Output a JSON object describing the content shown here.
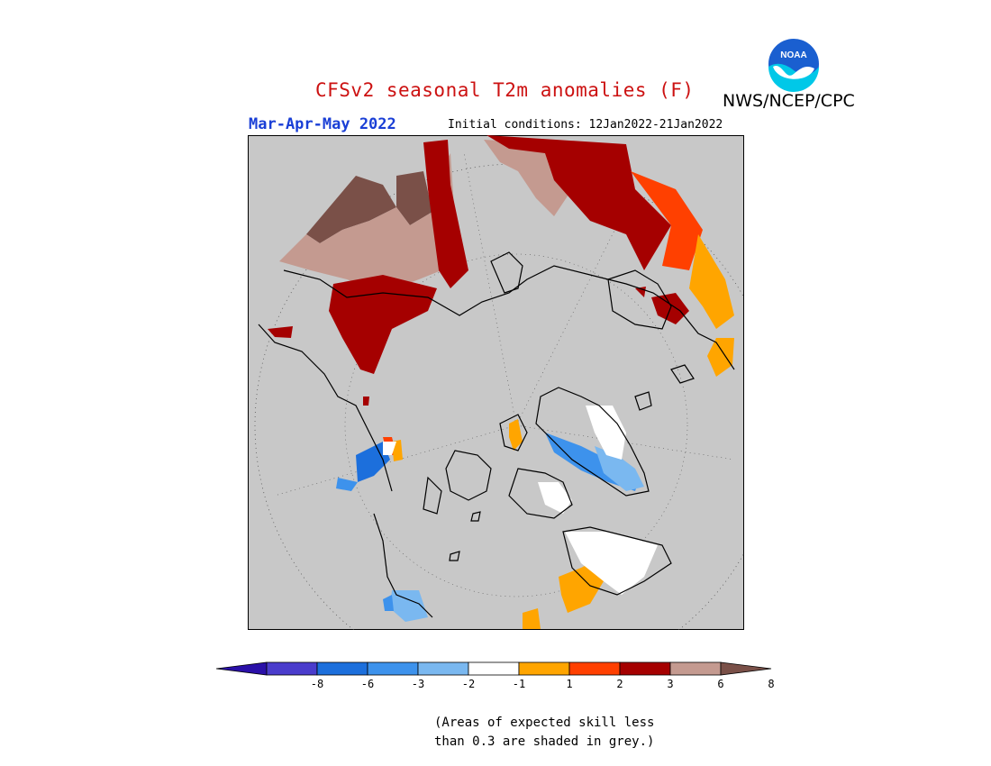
{
  "header": {
    "title": "CFSv2 seasonal T2m anomalies (F)",
    "agency": "NWS/NCEP/CPC",
    "logo_text": "NOAA",
    "season": "Mar-Apr-May 2022",
    "initial_conditions": "Initial conditions: 12Jan2022-21Jan2022"
  },
  "map": {
    "projection": "north polar stereographic",
    "background_color": "#c8c8c8",
    "legend_colors": {
      "lt_-8": "#1e0fa0",
      "-8_-6": "#4a3ccc",
      "-6_-3": "#1c6fdc",
      "-3_-2": "#3d92ec",
      "-2_-1": "#7ab8f0",
      "-1_1": "#ffffff",
      "1_2": "#ffa500",
      "2_3": "#ff4000",
      "3_6": "#a50000",
      "6_8": "#c49a90",
      "gt_8": "#7a5048"
    }
  },
  "colorbar": {
    "labels": [
      "-8",
      "-6",
      "-3",
      "-2",
      "-1",
      "1",
      "2",
      "3",
      "6",
      "8"
    ],
    "colors": [
      "#2a10a8",
      "#4a3ccc",
      "#1c6fdc",
      "#3d92ec",
      "#7ab8f0",
      "#ffffff",
      "#ffa500",
      "#ff4000",
      "#a50000",
      "#c49a90",
      "#7a5048"
    ]
  },
  "note": {
    "line1": "(Areas of expected skill less",
    "line2": "than 0.3 are shaded in grey.)"
  }
}
